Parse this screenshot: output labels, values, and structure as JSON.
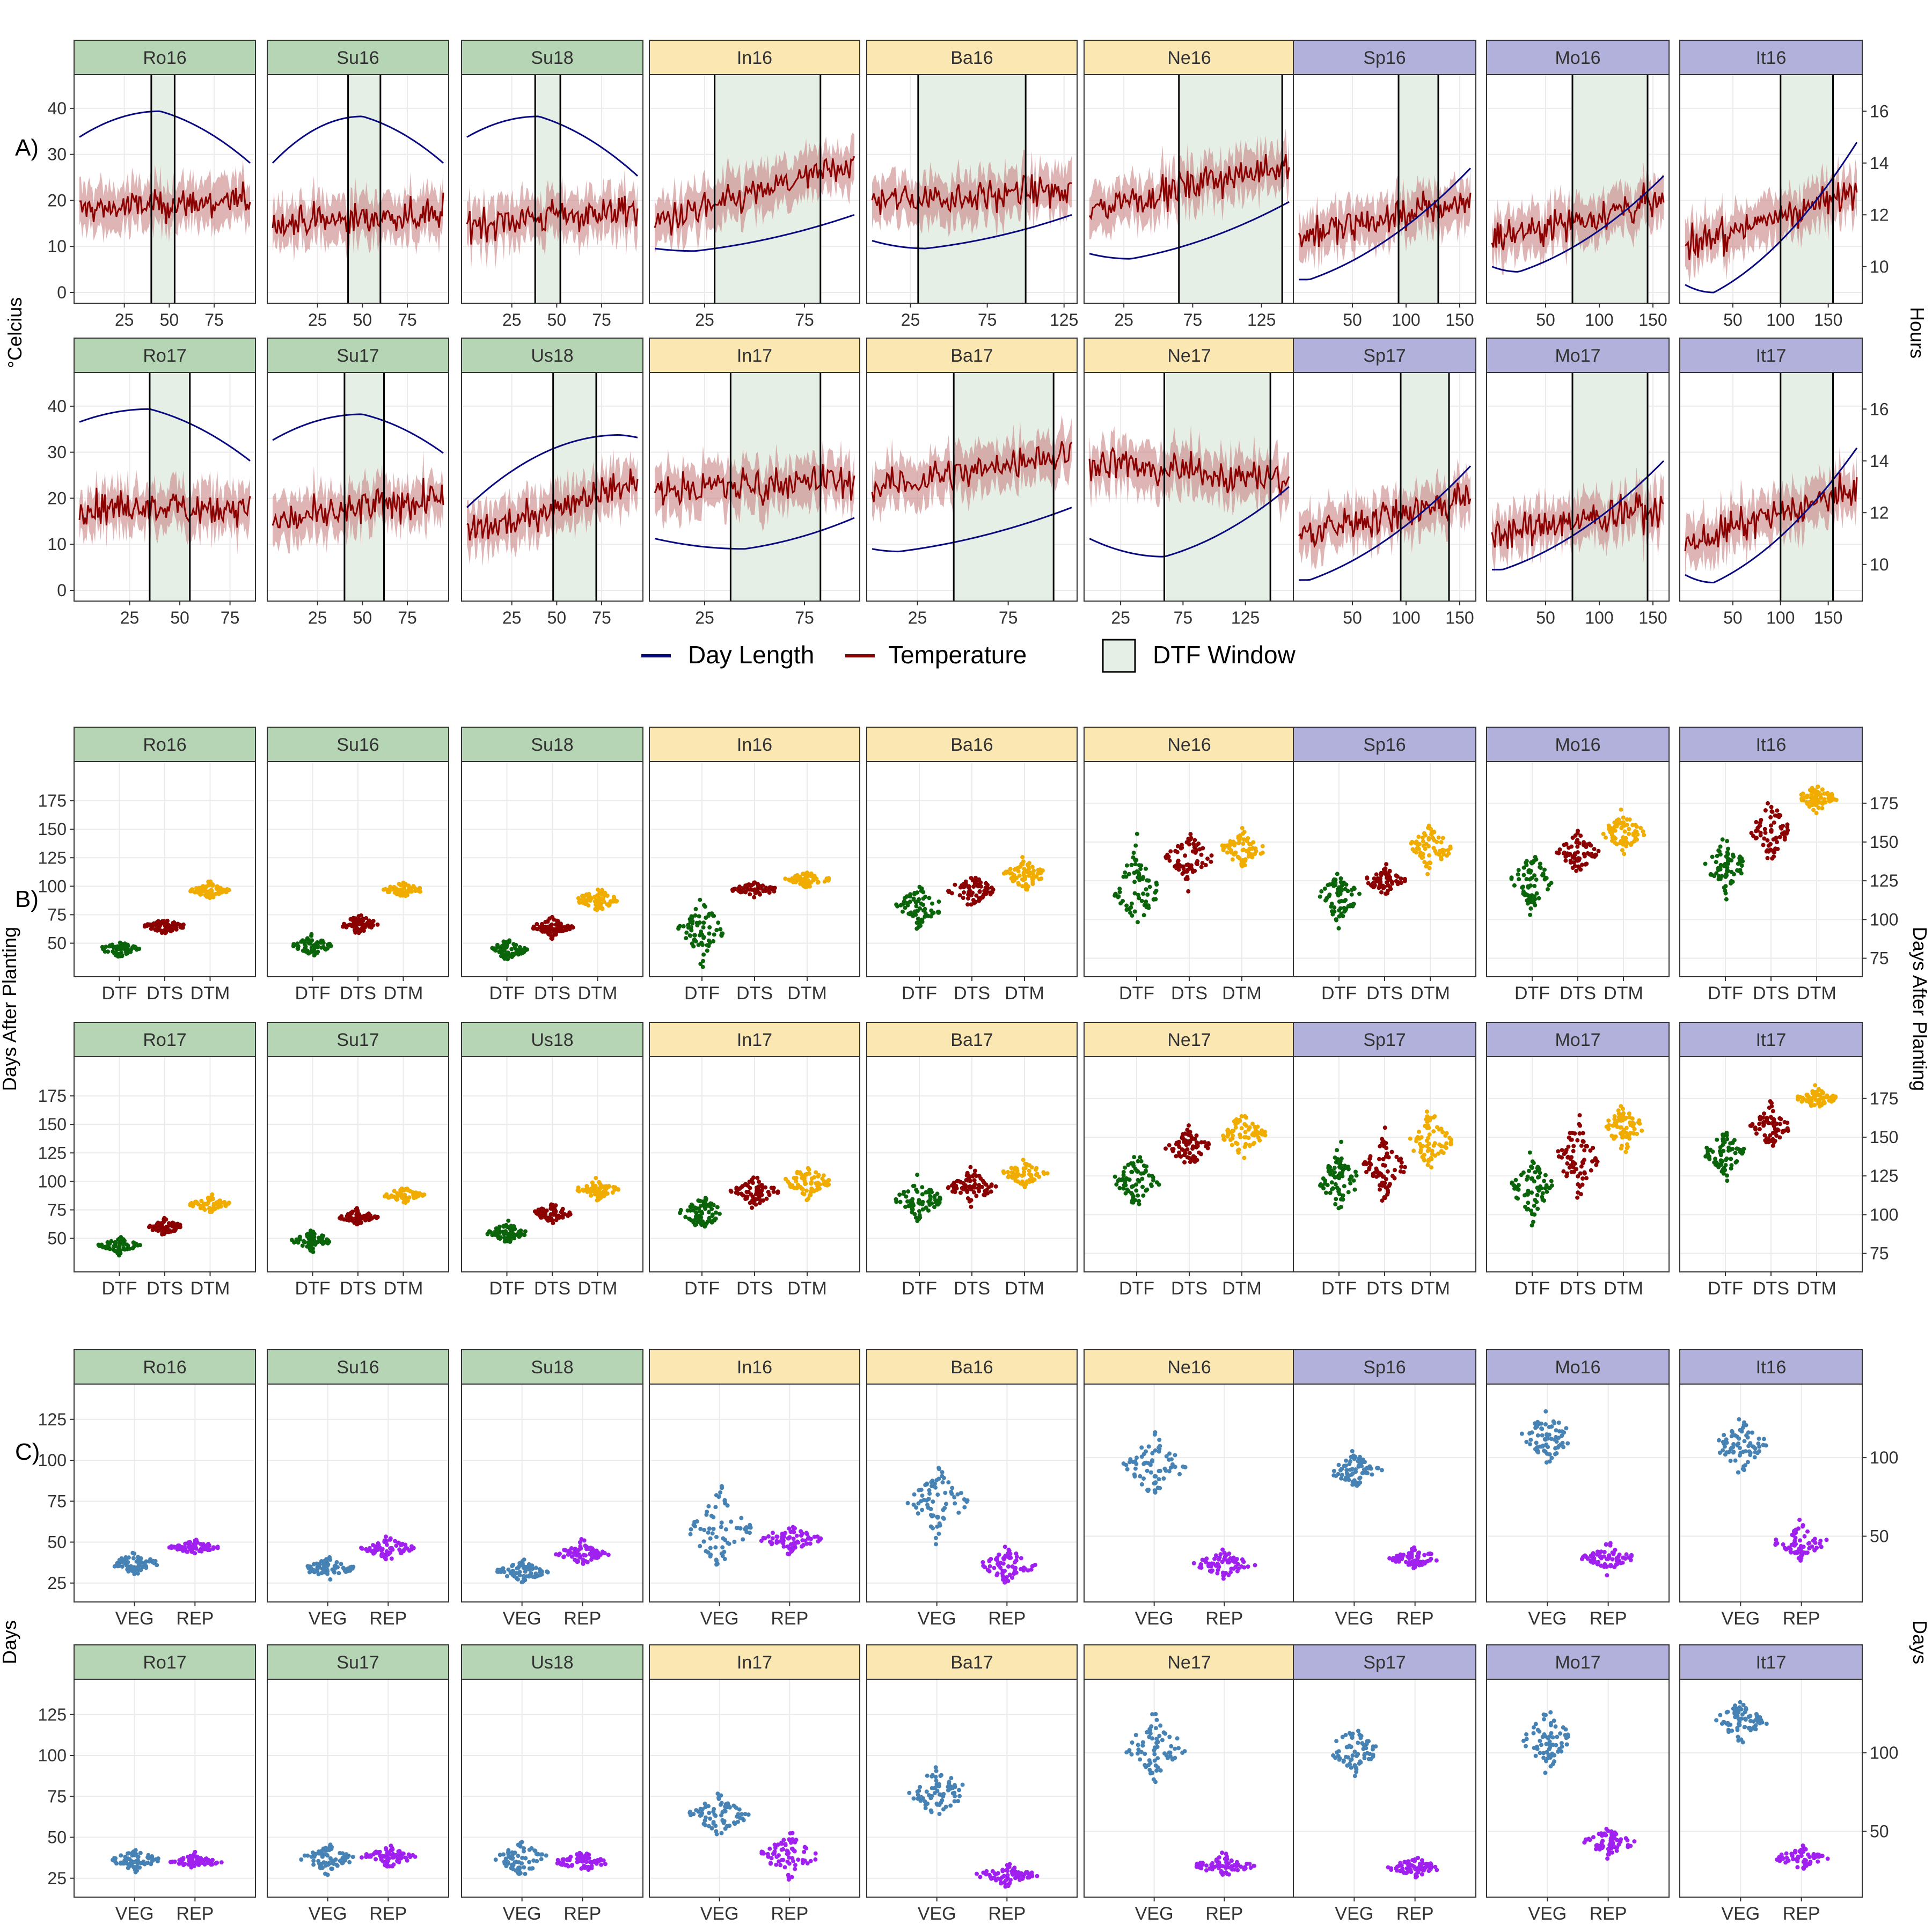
{
  "colors": {
    "green_strip": "#b5d5b5",
    "yellow_strip": "#fbe7b2",
    "purple_strip": "#b1b1dc",
    "day_length": "#0a0a80",
    "temperature": "#8b0000",
    "temp_band": "#c88282",
    "dtf_window": "#e6efe6",
    "grid": "#ebebeb",
    "DTF": "#0a640a",
    "DTS": "#8b0000",
    "DTM": "#f0ad00",
    "VEG": "#4682b4",
    "REP": "#a020f0"
  },
  "panel_labels": {
    "A": "A)",
    "B": "B)",
    "C": "C)"
  },
  "env_rows": [
    [
      "Ro16",
      "Su16",
      "Su18",
      "In16",
      "Ba16",
      "Ne16",
      "Sp16",
      "Mo16",
      "It16"
    ],
    [
      "Ro17",
      "Su17",
      "Us18",
      "In17",
      "Ba17",
      "Ne17",
      "Sp17",
      "Mo17",
      "It17"
    ]
  ],
  "env_groups": [
    "green",
    "green",
    "green",
    "yellow",
    "yellow",
    "yellow",
    "purple",
    "purple",
    "purple"
  ],
  "chart_data": [
    {
      "type": "line",
      "panel": "A)",
      "ylabel": "°Celcius",
      "ylabel_right": "Hours",
      "ylim": [
        0,
        45
      ],
      "ylim_right": [
        9,
        17
      ],
      "y_ticks": [
        0,
        10,
        20,
        30,
        40
      ],
      "y_ticks_right": [
        10,
        12,
        14,
        16
      ],
      "legend": {
        "position": "bottom",
        "entries": [
          "Day Length",
          "Temperature",
          "DTF Window"
        ]
      },
      "facets": [
        {
          "env": "Ro16",
          "x_max": 95,
          "x_ticks": [
            25,
            50,
            75
          ],
          "dtf_window": [
            40,
            53
          ],
          "day_length_start": 15.0,
          "day_length_peak": 16.0,
          "day_length_peak_x": 45,
          "day_length_end": 14.0,
          "temp_mean": 18,
          "temp_start": 18,
          "temp_end": 20
        },
        {
          "env": "Su16",
          "x_max": 95,
          "x_ticks": [
            25,
            50,
            75
          ],
          "dtf_window": [
            42,
            60
          ],
          "day_length_start": 14.0,
          "day_length_peak": 15.8,
          "day_length_peak_x": 50,
          "day_length_end": 14.0,
          "temp_mean": 17,
          "temp_start": 15,
          "temp_end": 17
        },
        {
          "env": "Su18",
          "x_max": 95,
          "x_ticks": [
            25,
            50,
            75
          ],
          "dtf_window": [
            38,
            52
          ],
          "day_length_start": 15.0,
          "day_length_peak": 15.8,
          "day_length_peak_x": 40,
          "day_length_end": 13.5,
          "temp_mean": 17,
          "temp_start": 15,
          "temp_end": 18
        },
        {
          "env": "In16",
          "x_max": 100,
          "x_ticks": [
            25,
            75
          ],
          "dtf_window": [
            30,
            83
          ],
          "day_length_start": 10.7,
          "day_length_peak": 10.6,
          "day_length_peak_x": 20,
          "day_length_end": 12.0,
          "temp_mean": 20,
          "temp_start": 15,
          "temp_end": 28
        },
        {
          "env": "Ba16",
          "x_max": 130,
          "x_ticks": [
            25,
            75,
            125
          ],
          "dtf_window": [
            30,
            100
          ],
          "day_length_start": 11.0,
          "day_length_peak": 10.7,
          "day_length_peak_x": 35,
          "day_length_end": 12.0,
          "temp_mean": 20,
          "temp_start": 20,
          "temp_end": 22
        },
        {
          "env": "Ne16",
          "x_max": 145,
          "x_ticks": [
            25,
            75,
            125
          ],
          "dtf_window": [
            65,
            140
          ],
          "day_length_start": 10.5,
          "day_length_peak": 10.3,
          "day_length_peak_x": 30,
          "day_length_end": 12.5,
          "temp_mean": 18,
          "temp_start": 18,
          "temp_end": 28
        },
        {
          "env": "Sp16",
          "x_max": 160,
          "x_ticks": [
            50,
            100,
            150
          ],
          "dtf_window": [
            93,
            130
          ],
          "day_length_start": 9.5,
          "day_length_peak": 9.5,
          "day_length_peak_x": 10,
          "day_length_end": 13.8,
          "temp_mean": 14,
          "temp_start": 12,
          "temp_end": 20
        },
        {
          "env": "Mo16",
          "x_max": 160,
          "x_ticks": [
            50,
            100,
            150
          ],
          "dtf_window": [
            75,
            145
          ],
          "day_length_start": 10.0,
          "day_length_peak": 9.8,
          "day_length_peak_x": 25,
          "day_length_end": 13.5,
          "temp_mean": 14,
          "temp_start": 12,
          "temp_end": 20
        },
        {
          "env": "It16",
          "x_max": 180,
          "x_ticks": [
            50,
            100,
            150
          ],
          "dtf_window": [
            100,
            155
          ],
          "day_length_start": 9.3,
          "day_length_peak": 9.0,
          "day_length_peak_x": 30,
          "day_length_end": 14.8,
          "temp_mean": 14,
          "temp_start": 10,
          "temp_end": 22
        },
        {
          "env": "Ro17",
          "x_max": 85,
          "x_ticks": [
            25,
            50,
            75
          ],
          "dtf_window": [
            35,
            55
          ],
          "day_length_start": 15.5,
          "day_length_peak": 16.0,
          "day_length_peak_x": 35,
          "day_length_end": 14.0,
          "temp_mean": 18,
          "temp_start": 18,
          "temp_end": 18
        },
        {
          "env": "Su17",
          "x_max": 95,
          "x_ticks": [
            25,
            50,
            75
          ],
          "dtf_window": [
            40,
            62
          ],
          "day_length_start": 14.8,
          "day_length_peak": 15.8,
          "day_length_peak_x": 50,
          "day_length_end": 14.3,
          "temp_mean": 17,
          "temp_start": 15,
          "temp_end": 20
        },
        {
          "env": "Us18",
          "x_max": 95,
          "x_ticks": [
            25,
            50,
            75
          ],
          "dtf_window": [
            48,
            72
          ],
          "day_length_start": 12.2,
          "day_length_peak": 15.0,
          "day_length_peak_x": 85,
          "day_length_end": 14.9,
          "temp_mean": 18,
          "temp_start": 12,
          "temp_end": 24
        },
        {
          "env": "In17",
          "x_max": 100,
          "x_ticks": [
            25,
            75
          ],
          "dtf_window": [
            38,
            83
          ],
          "day_length_start": 11.0,
          "day_length_peak": 10.6,
          "day_length_peak_x": 45,
          "day_length_end": 11.8,
          "temp_mean": 20,
          "temp_start": 22,
          "temp_end": 24
        },
        {
          "env": "Ba17",
          "x_max": 110,
          "x_ticks": [
            25,
            75
          ],
          "dtf_window": [
            45,
            100
          ],
          "day_length_start": 10.6,
          "day_length_peak": 10.5,
          "day_length_peak_x": 15,
          "day_length_end": 12.2,
          "temp_mean": 22,
          "temp_start": 22,
          "temp_end": 30
        },
        {
          "env": "Ne17",
          "x_max": 160,
          "x_ticks": [
            25,
            75,
            125
          ],
          "dtf_window": [
            60,
            145
          ],
          "day_length_start": 11.0,
          "day_length_peak": 10.3,
          "day_length_peak_x": 60,
          "day_length_end": 13.0,
          "temp_mean": 20,
          "temp_start": 28,
          "temp_end": 24
        },
        {
          "env": "Sp17",
          "x_max": 160,
          "x_ticks": [
            50,
            100,
            150
          ],
          "dtf_window": [
            95,
            140
          ],
          "day_length_start": 9.4,
          "day_length_peak": 9.4,
          "day_length_peak_x": 10,
          "day_length_end": 13.8,
          "temp_mean": 14,
          "temp_start": 12,
          "temp_end": 20
        },
        {
          "env": "Mo17",
          "x_max": 160,
          "x_ticks": [
            50,
            100,
            150
          ],
          "dtf_window": [
            75,
            145
          ],
          "day_length_start": 9.8,
          "day_length_peak": 9.8,
          "day_length_peak_x": 10,
          "day_length_end": 14.0,
          "temp_mean": 13,
          "temp_start": 12,
          "temp_end": 18
        },
        {
          "env": "It17",
          "x_max": 180,
          "x_ticks": [
            50,
            100,
            150
          ],
          "dtf_window": [
            100,
            155
          ],
          "day_length_start": 9.6,
          "day_length_peak": 9.3,
          "day_length_peak_x": 30,
          "day_length_end": 14.5,
          "temp_mean": 13,
          "temp_start": 10,
          "temp_end": 22
        }
      ]
    },
    {
      "type": "scatter",
      "subtype": "beeswarm",
      "panel": "B)",
      "ylabel": "Days After Planting",
      "ylabel_right": "Days After Planting",
      "categories": [
        "DTF",
        "DTS",
        "DTM"
      ],
      "left_ylim": [
        30,
        200
      ],
      "left_y_ticks": [
        50,
        75,
        100,
        125,
        150,
        175
      ],
      "right_ylim": [
        70,
        195
      ],
      "right_y_ticks": [
        75,
        100,
        125,
        150,
        175
      ],
      "facets": [
        {
          "env": "Ro16",
          "DTF": [
            45,
            3
          ],
          "DTS": [
            65,
            3
          ],
          "DTM": [
            96,
            3
          ]
        },
        {
          "env": "Su16",
          "DTF": [
            48,
            4
          ],
          "DTS": [
            67,
            4
          ],
          "DTM": [
            97,
            3
          ]
        },
        {
          "env": "Su18",
          "DTF": [
            44,
            4
          ],
          "DTS": [
            64,
            4
          ],
          "DTM": [
            88,
            5
          ]
        },
        {
          "env": "In16",
          "DTF": [
            62,
            12
          ],
          "DTS": [
            97,
            3
          ],
          "DTM": [
            106,
            3
          ]
        },
        {
          "env": "Ba16",
          "DTF": [
            82,
            9
          ],
          "DTS": [
            96,
            7
          ],
          "DTM": [
            110,
            6
          ]
        },
        {
          "env": "Ne16",
          "DTF": [
            120,
            12
          ],
          "DTS": [
            140,
            7
          ],
          "DTM": [
            145,
            5
          ]
        },
        {
          "env": "Sp16",
          "DTF": [
            115,
            8
          ],
          "DTS": [
            125,
            4
          ],
          "DTM": [
            146,
            8
          ]
        },
        {
          "env": "Mo16",
          "DTF": [
            125,
            9
          ],
          "DTS": [
            143,
            6
          ],
          "DTM": [
            156,
            6
          ]
        },
        {
          "env": "It16",
          "DTF": [
            135,
            8
          ],
          "DTS": [
            157,
            9
          ],
          "DTM": [
            178,
            4
          ]
        },
        {
          "env": "Ro17",
          "DTF": [
            44,
            3
          ],
          "DTS": [
            60,
            3
          ],
          "DTM": [
            80,
            3
          ]
        },
        {
          "env": "Su17",
          "DTF": [
            48,
            4
          ],
          "DTS": [
            69,
            3
          ],
          "DTM": [
            88,
            3
          ]
        },
        {
          "env": "Us18",
          "DTF": [
            55,
            4
          ],
          "DTS": [
            72,
            4
          ],
          "DTM": [
            93,
            4
          ]
        },
        {
          "env": "In17",
          "DTF": [
            72,
            7
          ],
          "DTS": [
            91,
            6
          ],
          "DTM": [
            100,
            7
          ]
        },
        {
          "env": "Ba17",
          "DTF": [
            84,
            8
          ],
          "DTS": [
            95,
            7
          ],
          "DTM": [
            107,
            5
          ]
        },
        {
          "env": "Ne17",
          "DTF": [
            122,
            8
          ],
          "DTS": [
            143,
            6
          ],
          "DTM": [
            152,
            6
          ]
        },
        {
          "env": "Sp17",
          "DTF": [
            122,
            9
          ],
          "DTS": [
            131,
            9
          ],
          "DTM": [
            147,
            10
          ]
        },
        {
          "env": "Mo17",
          "DTF": [
            118,
            10
          ],
          "DTS": [
            137,
            12
          ],
          "DTM": [
            156,
            7
          ]
        },
        {
          "env": "It17",
          "DTF": [
            140,
            7
          ],
          "DTS": [
            157,
            6
          ],
          "DTM": [
            175,
            3
          ]
        }
      ]
    },
    {
      "type": "scatter",
      "subtype": "beeswarm",
      "panel": "C)",
      "ylabel": "Days",
      "ylabel_right": "Days",
      "categories": [
        "VEG",
        "REP"
      ],
      "left_ylim": [
        20,
        140
      ],
      "left_y_ticks": [
        25,
        50,
        75,
        100,
        125
      ],
      "right_ylim": [
        15,
        140
      ],
      "right_y_ticks": [
        50,
        100
      ],
      "facets": [
        {
          "env": "Ro16",
          "VEG": [
            37,
            3
          ],
          "REP": [
            47,
            2
          ]
        },
        {
          "env": "Su16",
          "VEG": [
            34,
            3
          ],
          "REP": [
            46,
            3
          ]
        },
        {
          "env": "Su18",
          "VEG": [
            32,
            3
          ],
          "REP": [
            43,
            3
          ]
        },
        {
          "env": "In16",
          "VEG": [
            58,
            12
          ],
          "REP": [
            52,
            4
          ]
        },
        {
          "env": "Ba16",
          "VEG": [
            75,
            10
          ],
          "REP": [
            36,
            5
          ]
        },
        {
          "env": "Ne16",
          "VEG": [
            95,
            10
          ],
          "REP": [
            32,
            4
          ]
        },
        {
          "env": "Sp16",
          "VEG": [
            92,
            5
          ],
          "REP": [
            36,
            3
          ]
        },
        {
          "env": "Mo16",
          "VEG": [
            113,
            8
          ],
          "REP": [
            36,
            4
          ]
        },
        {
          "env": "It16",
          "VEG": [
            108,
            8
          ],
          "REP": [
            46,
            5
          ]
        },
        {
          "env": "Ro17",
          "VEG": [
            36,
            3
          ],
          "REP": [
            35,
            2
          ]
        },
        {
          "env": "Su17",
          "VEG": [
            37,
            4
          ],
          "REP": [
            38,
            3
          ]
        },
        {
          "env": "Us18",
          "VEG": [
            37,
            5
          ],
          "REP": [
            35,
            3
          ]
        },
        {
          "env": "In17",
          "VEG": [
            64,
            6
          ],
          "REP": [
            39,
            6
          ]
        },
        {
          "env": "Ba17",
          "VEG": [
            78,
            8
          ],
          "REP": [
            27,
            3
          ]
        },
        {
          "env": "Ne17",
          "VEG": [
            103,
            9
          ],
          "REP": [
            28,
            3
          ]
        },
        {
          "env": "Sp17",
          "VEG": [
            102,
            7
          ],
          "REP": [
            27,
            3
          ]
        },
        {
          "env": "Mo17",
          "VEG": [
            108,
            9
          ],
          "REP": [
            43,
            4
          ]
        },
        {
          "env": "It17",
          "VEG": [
            120,
            6
          ],
          "REP": [
            33,
            3
          ]
        }
      ]
    }
  ]
}
